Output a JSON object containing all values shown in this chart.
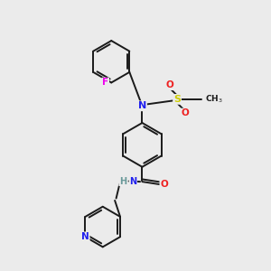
{
  "background_color": "#ebebeb",
  "bond_color": "#1a1a1a",
  "atom_colors": {
    "N": "#2020ee",
    "O": "#ee2020",
    "F": "#ee00ee",
    "S": "#cccc00",
    "H": "#6a9a9a",
    "C": "#1a1a1a"
  },
  "figsize": [
    3.0,
    3.0
  ],
  "dpi": 100
}
